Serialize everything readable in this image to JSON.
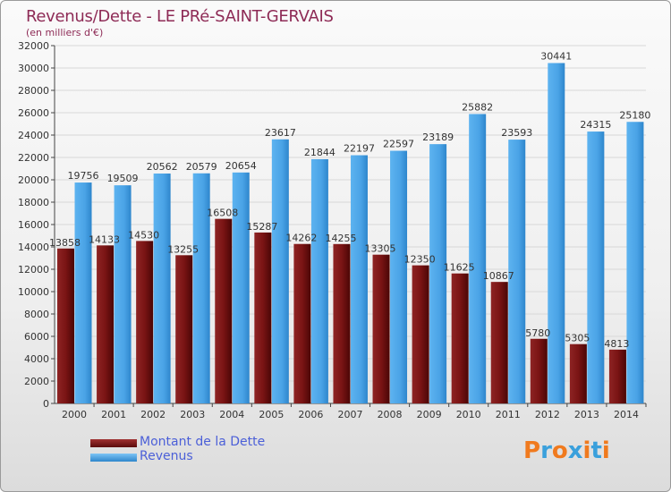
{
  "title": "Revenus/Dette - LE PRé-SAINT-GERVAIS",
  "subtitle": "(en milliers d'€)",
  "logo_text": "Proxiti",
  "colors": {
    "dette": "#7a1818",
    "revenus": "#4aa3e6",
    "axis": "#444444",
    "grid": "#d8d8d8"
  },
  "legend": [
    {
      "label": "Montant de la Dette",
      "color": "#7a1818"
    },
    {
      "label": "Revenus",
      "color": "#4aa3e6"
    }
  ],
  "chart_data": {
    "type": "bar",
    "title": "Revenus/Dette - LE PRé-SAINT-GERVAIS",
    "subtitle": "(en milliers d'€)",
    "categories": [
      "2000",
      "2001",
      "2002",
      "2003",
      "2004",
      "2005",
      "2006",
      "2007",
      "2008",
      "2009",
      "2010",
      "2011",
      "2012",
      "2013",
      "2014"
    ],
    "series": [
      {
        "name": "Montant de la Dette",
        "values": [
          13858,
          14133,
          14530,
          13255,
          16508,
          15287,
          14262,
          14255,
          13305,
          12350,
          11625,
          10867,
          5780,
          5305,
          4813
        ],
        "labels": [
          "13858",
          "14133",
          "14530",
          "13255",
          "16508",
          "15287",
          "14262",
          "14255",
          "13305",
          "12350",
          "11625",
          "10867",
          "5780",
          "5305",
          "4813"
        ]
      },
      {
        "name": "Revenus",
        "values": [
          19756,
          19509,
          20562,
          20579,
          20654,
          23617,
          21844,
          22197,
          22597,
          23189,
          25882,
          23593,
          30441,
          24315,
          25180
        ],
        "labels": [
          "19756",
          "19509",
          "20562",
          "20579",
          "20654",
          "23617",
          "21844",
          "22197",
          "22597",
          "23189",
          "25882",
          "23593",
          "30441",
          "24315",
          "25180"
        ]
      }
    ],
    "ylim": [
      0,
      32000
    ],
    "yticks": [
      "0",
      "2000",
      "4000",
      "6000",
      "8000",
      "10000",
      "12000",
      "14000",
      "16000",
      "18000",
      "20000",
      "22000",
      "24000",
      "26000",
      "28000",
      "30000",
      "32000"
    ],
    "grid": true,
    "legend_position": "bottom-left"
  }
}
